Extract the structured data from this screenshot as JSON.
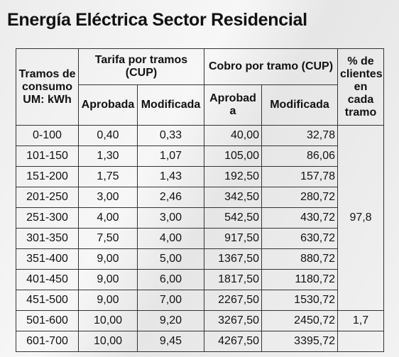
{
  "title": "Energía Eléctrica Sector Residencial",
  "table": {
    "header": {
      "tramos": "Tramos de consumo UM: kWh",
      "tarifa": "Tarifa por tramos (CUP)",
      "cobro": "Cobro por tramo (CUP)",
      "clientes": "% de clientes en cada tramo",
      "sub": [
        "Aprobada",
        "Modificada",
        "Aprobada",
        "Modificada"
      ]
    },
    "rows": [
      [
        "0-100",
        "0,40",
        "0,33",
        "40,00",
        "32,78"
      ],
      [
        "101-150",
        "1,30",
        "1,07",
        "105,00",
        "86,06"
      ],
      [
        "151-200",
        "1,75",
        "1,43",
        "192,50",
        "157,78"
      ],
      [
        "201-250",
        "3,00",
        "2,46",
        "342,50",
        "280,72"
      ],
      [
        "251-300",
        "4,00",
        "3,00",
        "542,50",
        "430,72"
      ],
      [
        "301-350",
        "7,50",
        "4,00",
        "917,50",
        "630,72"
      ],
      [
        "351-400",
        "9,00",
        "5,00",
        "1367,50",
        "880,72"
      ],
      [
        "401-450",
        "9,00",
        "6,00",
        "1817,50",
        "1180,72"
      ],
      [
        "451-500",
        "9,00",
        "7,00",
        "2267,50",
        "1530,72"
      ],
      [
        "501-600",
        "10,00",
        "9,20",
        "3267,50",
        "2450,72"
      ],
      [
        "601-700",
        "10,00",
        "9,45",
        "4267,50",
        "3395,72"
      ]
    ],
    "clientes": [
      "97,8",
      "1,7"
    ]
  }
}
